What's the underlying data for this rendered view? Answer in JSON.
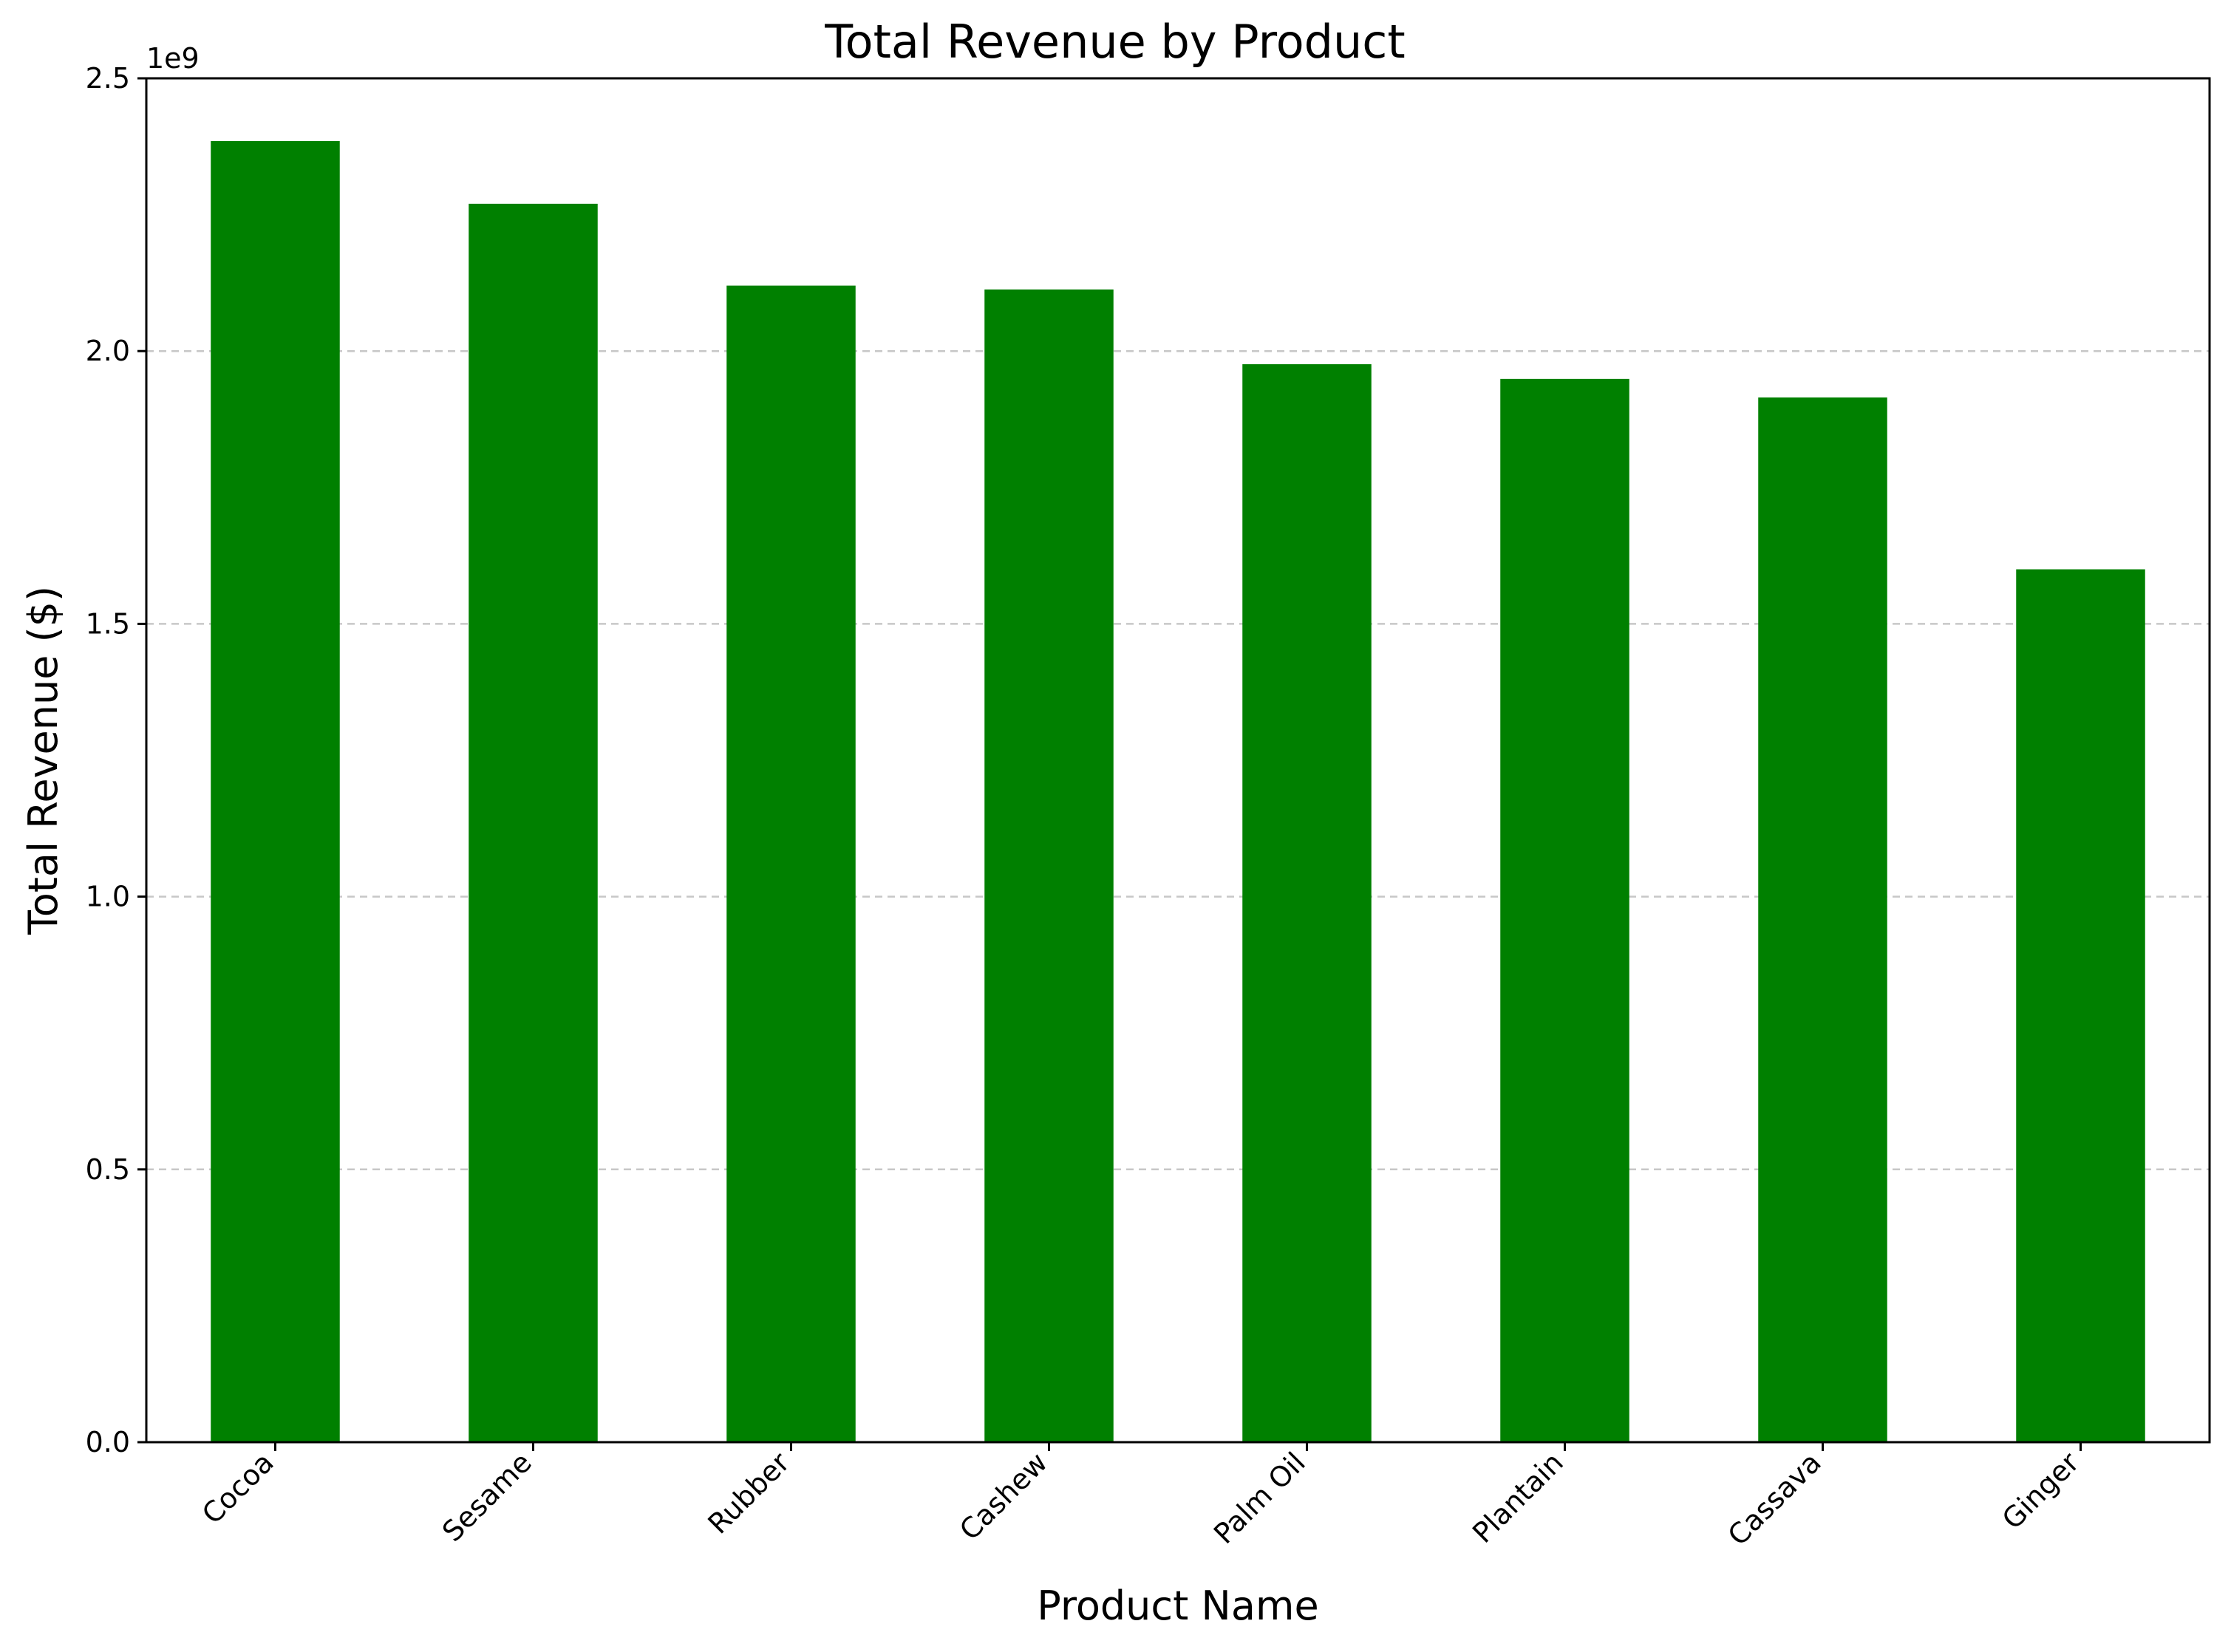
{
  "chart_data": {
    "type": "bar",
    "title": "Total Revenue by Product",
    "xlabel": "Product Name",
    "ylabel": "Total Revenue ($)",
    "y_offset_label": "1e9",
    "categories": [
      "Cocoa",
      "Sesame",
      "Rubber",
      "Cashew",
      "Palm Oil",
      "Plantain",
      "Cassava",
      "Ginger"
    ],
    "values": [
      2.385,
      2.27,
      2.12,
      2.113,
      1.976,
      1.949,
      1.915,
      1.6
    ],
    "value_scale": 1000000000,
    "ylim": [
      0,
      2.5
    ],
    "yticks": [
      0.0,
      0.5,
      1.0,
      1.5,
      2.0,
      2.5
    ],
    "ytick_labels": [
      "0.0",
      "0.5",
      "1.0",
      "1.5",
      "2.0",
      "2.5"
    ],
    "grid": {
      "axis": "y",
      "style": "dashed"
    },
    "legend": null,
    "colors": {
      "bar": "#008000",
      "grid": "#b0b0b0",
      "axis": "#000000"
    }
  }
}
